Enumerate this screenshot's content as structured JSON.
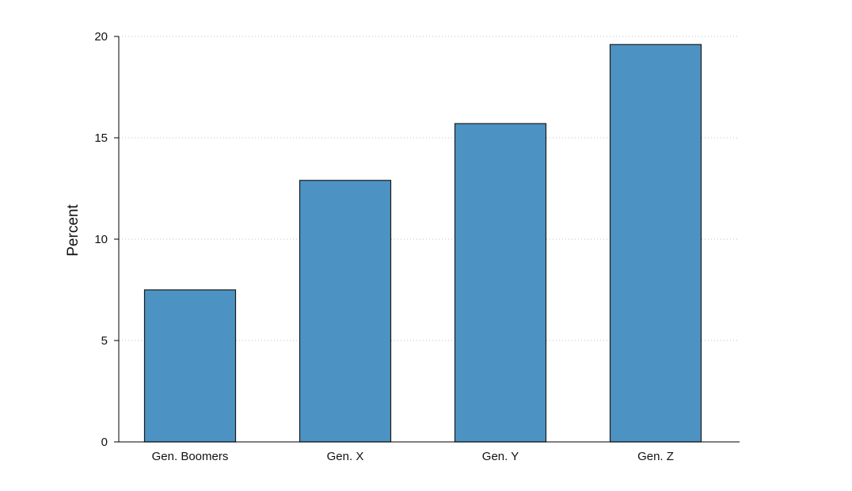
{
  "chart_data": {
    "type": "bar",
    "title": "",
    "xlabel": "",
    "ylabel": "Percent",
    "categories": [
      "Gen. Boomers",
      "Gen. X",
      "Gen. Y",
      "Gen. Z"
    ],
    "values": [
      7.5,
      12.9,
      15.7,
      19.6
    ],
    "ylim": [
      0,
      20
    ],
    "yticks": [
      0,
      5,
      10,
      15,
      20
    ],
    "ytick_labels": [
      "0",
      "5",
      "10",
      "15",
      "20"
    ],
    "grid": "horizontal-dotted",
    "bar_color": "#4c93c3",
    "bar_edge_color": "#1a1a1a",
    "legend": "none"
  }
}
